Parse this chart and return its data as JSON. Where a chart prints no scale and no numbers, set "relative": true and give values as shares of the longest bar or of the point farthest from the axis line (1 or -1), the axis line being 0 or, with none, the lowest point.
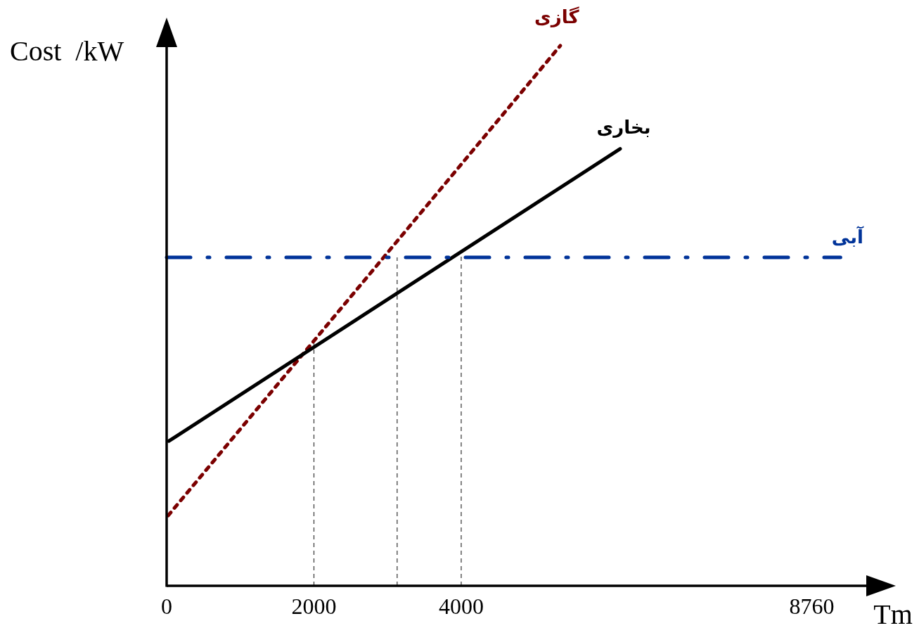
{
  "chart_data": {
    "type": "line",
    "relative": true,
    "xlabel": "Tm",
    "ylabel": "Cost  /kW",
    "xlim": [
      0,
      9500
    ],
    "xticks": [
      0,
      2000,
      4000,
      8760
    ],
    "series": [
      {
        "name": "گازی",
        "color": "#7b0000",
        "line_style": "dotted",
        "x": [
          20,
          5345
        ],
        "values": [
          0.13,
          1
        ]
      },
      {
        "name": "بخاری",
        "color": "#000000",
        "line_style": "solid",
        "x": [
          30,
          6158
        ],
        "values": [
          0.268,
          0.809
        ]
      },
      {
        "name": "آبی",
        "color": "#003399",
        "line_style": "dashdot",
        "x": [
          0,
          9150
        ],
        "values": [
          0.608,
          0.608
        ]
      }
    ],
    "ref_lines": [
      {
        "axis": "x",
        "value": 2000,
        "color": "#333333",
        "line_style": "dashed"
      },
      {
        "axis": "x",
        "value": 3130,
        "color": "#333333",
        "line_style": "dashed"
      },
      {
        "axis": "x",
        "value": 4000,
        "color": "#333333",
        "line_style": "dashed"
      }
    ]
  }
}
